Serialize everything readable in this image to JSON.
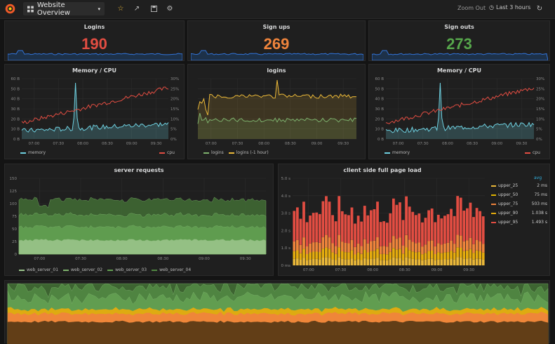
{
  "topbar": {
    "dashboard_title": "Website Overview",
    "zoom_out": "Zoom Out",
    "time_range": "Last 3 hours",
    "icons": [
      "grafana-logo",
      "dashboard-grid-icon",
      "chevron-down-icon",
      "star-icon",
      "share-icon",
      "save-icon",
      "gear-icon",
      "clock-icon",
      "refresh-icon"
    ]
  },
  "singlestats": [
    {
      "title": "Logins",
      "value": "190",
      "color": "#e24d42"
    },
    {
      "title": "Sign ups",
      "value": "269",
      "color": "#ef843c"
    },
    {
      "title": "Sign outs",
      "value": "273",
      "color": "#56a64b"
    }
  ],
  "memcpu_left": {
    "title": "Memory / CPU",
    "yleft": [
      "60 B",
      "50 B",
      "40 B",
      "30 B",
      "20 B",
      "10 B",
      "0 B"
    ],
    "yright": [
      "30%",
      "25%",
      "20%",
      "15%",
      "10%",
      "5%",
      "0%"
    ],
    "xticks": [
      "07:00",
      "07:30",
      "08:00",
      "08:30",
      "09:00",
      "09:30"
    ],
    "legend_left": "memory",
    "legend_right": "cpu"
  },
  "logins_graph": {
    "title": "logins",
    "xticks": [
      "07:00",
      "07:30",
      "08:00",
      "08:30",
      "09:00",
      "09:30"
    ],
    "legend": [
      "logins",
      "logins (-1 hour)"
    ]
  },
  "memcpu_right": {
    "title": "Memory / CPU",
    "yleft": [
      "60 B",
      "50 B",
      "40 B",
      "30 B",
      "20 B",
      "10 B",
      "0 B"
    ],
    "yright": [
      "30%",
      "25%",
      "20%",
      "15%",
      "10%",
      "5%",
      "0%"
    ],
    "xticks": [
      "07:00",
      "07:30",
      "08:00",
      "08:30",
      "09:00",
      "09:30"
    ],
    "legend_left": "memory",
    "legend_right": "cpu"
  },
  "server_requests": {
    "title": "server requests",
    "yticks": [
      "150",
      "125",
      "100",
      "75",
      "50",
      "25",
      "0"
    ],
    "xticks": [
      "07:00",
      "07:30",
      "08:00",
      "08:30",
      "09:00",
      "09:30"
    ],
    "legend": [
      "web_server_01",
      "web_server_02",
      "web_server_03",
      "web_server_04"
    ]
  },
  "page_load": {
    "title": "client side full page load",
    "yticks": [
      "5.0 s",
      "4.0 s",
      "3.0 s",
      "2.0 s",
      "1.0 s",
      "0 ms"
    ],
    "xticks": [
      "07:00",
      "07:30",
      "08:00",
      "08:30",
      "09:00",
      "09:30"
    ],
    "legend_header": "avg",
    "legend": [
      {
        "name": "upper_25",
        "value": "2 ms",
        "color": "#eab839"
      },
      {
        "name": "upper_50",
        "value": "75 ms",
        "color": "#e0b400"
      },
      {
        "name": "upper_75",
        "value": "503 ms",
        "color": "#ef843c"
      },
      {
        "name": "upper_90",
        "value": "1.038 s",
        "color": "#e5ac0e"
      },
      {
        "name": "upper_95",
        "value": "1.493 s",
        "color": "#e24d42"
      }
    ]
  },
  "colors": {
    "memory": "#6ed0e0",
    "cpu": "#e24d42",
    "logins": "#7eb26d",
    "logins_prev": "#eab839",
    "green1": "#3f6833",
    "green2": "#508642",
    "green3": "#629e51",
    "green4": "#9ac48a",
    "orange": "#ef843c",
    "yellow": "#eab839",
    "red": "#e24d42"
  }
}
